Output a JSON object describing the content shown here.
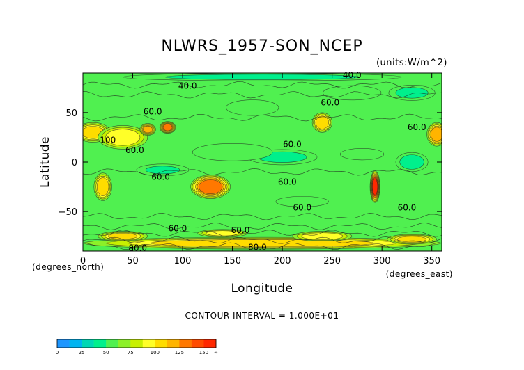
{
  "chart_data": {
    "type": "heatmap",
    "title": "NLWRS_1957-SON_NCEP",
    "units_label": "(units:W/m^2)",
    "xlabel": "Longitude",
    "ylabel": "Latitude",
    "x_unit_label": "(degrees_east)",
    "y_unit_label": "(degrees_north)",
    "xlim": [
      0,
      360
    ],
    "ylim": [
      -90,
      90
    ],
    "x_ticks": [
      0,
      50,
      100,
      150,
      200,
      250,
      300,
      350
    ],
    "y_ticks": [
      50,
      0,
      -50
    ],
    "x_tick_labels": [
      "0",
      "50",
      "100",
      "150",
      "200",
      "250",
      "300",
      "350"
    ],
    "y_tick_labels": [
      "50",
      "0",
      "−50"
    ],
    "contour_interval_text": "CONTOUR INTERVAL = 1.000E+01",
    "colorbar": {
      "levels": [
        0,
        12.5,
        25,
        37.5,
        50,
        62.5,
        75,
        87.5,
        100,
        112.5,
        125,
        137.5,
        150,
        162.5
      ],
      "colors": [
        "#1e96ff",
        "#00b4f0",
        "#00d7b4",
        "#00f08c",
        "#50f050",
        "#8cf028",
        "#c8f000",
        "#ffff28",
        "#ffdc00",
        "#ffb400",
        "#ff7800",
        "#ff4b00",
        "#ff2800"
      ],
      "tick_labels": [
        "0",
        "25",
        "50",
        "75",
        "100",
        "125",
        "150",
        "∞"
      ]
    },
    "background_value": 62,
    "features": [
      {
        "lon": 10,
        "lat": 30,
        "value": 105,
        "rx": 18,
        "ry": 10
      },
      {
        "lon": 40,
        "lat": 25,
        "value": 95,
        "rx": 25,
        "ry": 12
      },
      {
        "lon": 65,
        "lat": 33,
        "value": 115,
        "rx": 8,
        "ry": 6
      },
      {
        "lon": 85,
        "lat": 35,
        "value": 130,
        "rx": 8,
        "ry": 6
      },
      {
        "lon": 128,
        "lat": -25,
        "value": 135,
        "rx": 20,
        "ry": 12
      },
      {
        "lon": 20,
        "lat": -25,
        "value": 110,
        "rx": 9,
        "ry": 14
      },
      {
        "lon": 240,
        "lat": 40,
        "value": 110,
        "rx": 10,
        "ry": 10
      },
      {
        "lon": 293,
        "lat": -25,
        "value": 150,
        "rx": 5,
        "ry": 16
      },
      {
        "lon": 355,
        "lat": 28,
        "value": 120,
        "rx": 10,
        "ry": 12
      },
      {
        "lon": 200,
        "lat": 5,
        "value": 45,
        "rx": 45,
        "ry": 10
      },
      {
        "lon": 150,
        "lat": 10,
        "value": 50,
        "rx": 55,
        "ry": 12
      },
      {
        "lon": 80,
        "lat": -8,
        "value": 48,
        "rx": 35,
        "ry": 8
      },
      {
        "lon": 330,
        "lat": 0,
        "value": 40,
        "rx": 20,
        "ry": 12
      },
      {
        "lon": 280,
        "lat": 8,
        "value": 50,
        "rx": 30,
        "ry": 8
      },
      {
        "lon": 220,
        "lat": -40,
        "value": 55,
        "rx": 40,
        "ry": 8
      },
      {
        "lon": 330,
        "lat": 70,
        "value": 45,
        "rx": 30,
        "ry": 10
      },
      {
        "lon": 270,
        "lat": 70,
        "value": 50,
        "rx": 40,
        "ry": 10
      },
      {
        "lon": 170,
        "lat": 55,
        "value": 55,
        "rx": 40,
        "ry": 12
      },
      {
        "lon": 180,
        "lat": -82,
        "value": 105,
        "rx": 180,
        "ry": 6
      },
      {
        "lon": 40,
        "lat": -75,
        "value": 100,
        "rx": 25,
        "ry": 5
      },
      {
        "lon": 240,
        "lat": -75,
        "value": 95,
        "rx": 30,
        "ry": 5
      },
      {
        "lon": 140,
        "lat": -72,
        "value": 90,
        "rx": 25,
        "ry": 4
      },
      {
        "lon": 330,
        "lat": -78,
        "value": 100,
        "rx": 25,
        "ry": 5
      },
      {
        "lon": 180,
        "lat": 86,
        "value": 45,
        "rx": 180,
        "ry": 5
      }
    ],
    "contour_labels": [
      {
        "text": "40.0",
        "lon": 270,
        "lat": 88
      },
      {
        "text": "40.0",
        "lon": 105,
        "lat": 77
      },
      {
        "text": "60.0",
        "lon": 70,
        "lat": 51
      },
      {
        "text": "60.0",
        "lon": 248,
        "lat": 60
      },
      {
        "text": "60.0",
        "lon": 335,
        "lat": 35
      },
      {
        "text": "100",
        "lon": 25,
        "lat": 22
      },
      {
        "text": "60.0",
        "lon": 52,
        "lat": 12
      },
      {
        "text": "60.0",
        "lon": 210,
        "lat": 18
      },
      {
        "text": "60.0",
        "lon": 78,
        "lat": -15
      },
      {
        "text": "60.0",
        "lon": 205,
        "lat": -20
      },
      {
        "text": "60.0",
        "lon": 220,
        "lat": -46
      },
      {
        "text": "60.0",
        "lon": 325,
        "lat": -46
      },
      {
        "text": "60.0",
        "lon": 95,
        "lat": -67
      },
      {
        "text": "60.0",
        "lon": 158,
        "lat": -69
      },
      {
        "text": "80.0",
        "lon": 55,
        "lat": -87
      },
      {
        "text": "80.0",
        "lon": 175,
        "lat": -86
      }
    ]
  }
}
